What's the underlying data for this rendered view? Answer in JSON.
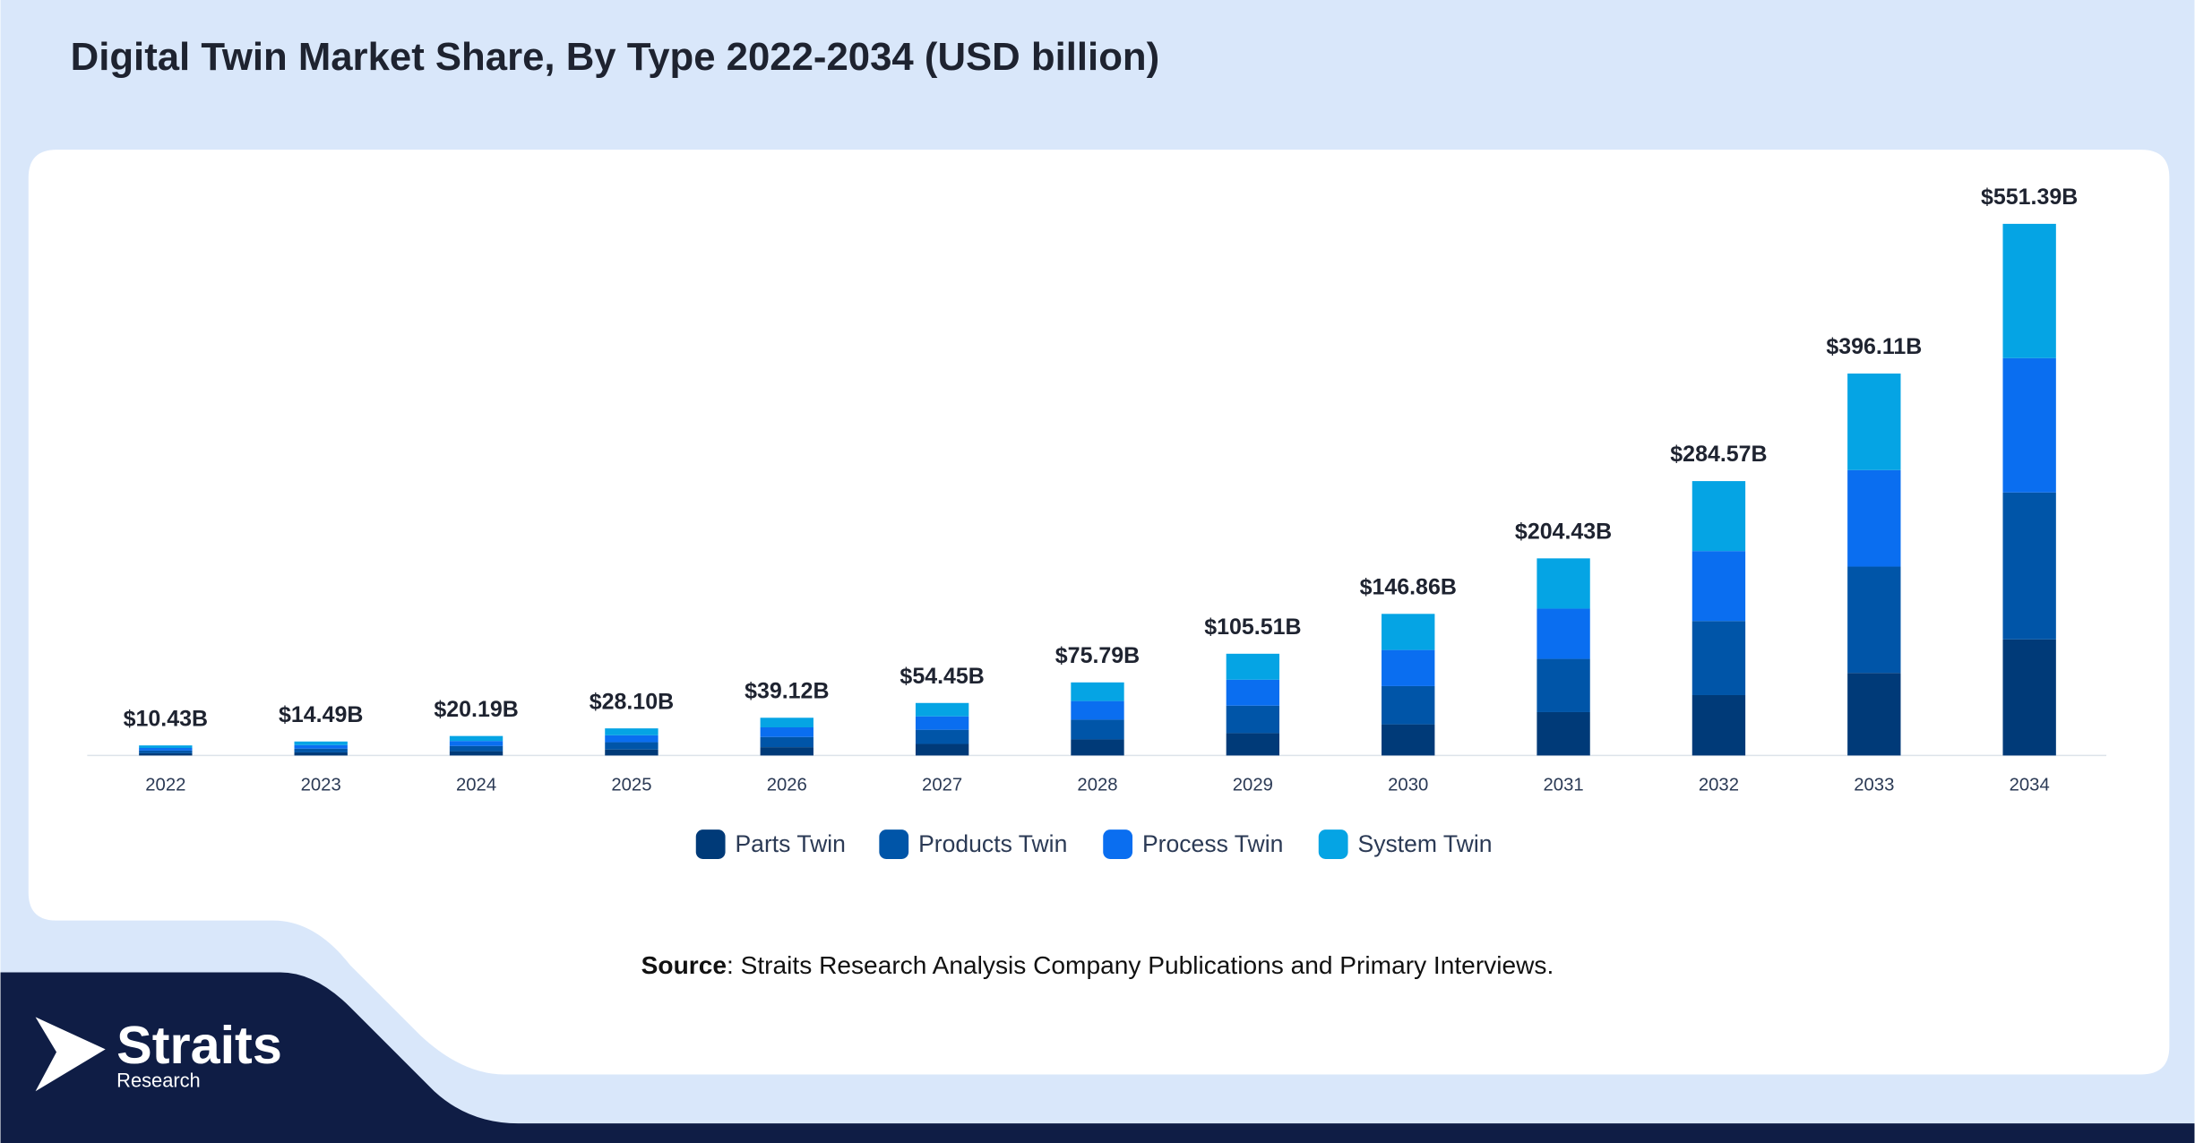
{
  "chart_data": {
    "type": "stacked-bar",
    "title": "Digital Twin Market Share, By Type 2022-2034 (USD billion)",
    "categories": [
      "2022",
      "2023",
      "2024",
      "2025",
      "2026",
      "2027",
      "2028",
      "2029",
      "2030",
      "2031",
      "2032",
      "2033",
      "2034"
    ],
    "series": [
      {
        "name": "Parts Twin",
        "color": "#003a78",
        "values": [
          2.29,
          3.19,
          4.44,
          6.18,
          8.61,
          11.98,
          16.67,
          23.21,
          32.31,
          44.97,
          62.61,
          85.6,
          120.4
        ]
      },
      {
        "name": "Products Twin",
        "color": "#0055a8",
        "values": [
          2.82,
          3.91,
          5.45,
          7.59,
          10.56,
          14.7,
          20.46,
          28.49,
          39.65,
          55.2,
          76.83,
          110.3,
          152.4
        ]
      },
      {
        "name": "Process Twin",
        "color": "#0a6ef0",
        "values": [
          2.66,
          3.7,
          5.15,
          7.17,
          9.98,
          13.89,
          19.33,
          26.91,
          37.45,
          52.13,
          72.57,
          100.1,
          139.3
        ]
      },
      {
        "name": "System Twin",
        "color": "#05a4e4",
        "values": [
          2.66,
          3.69,
          5.15,
          7.16,
          9.97,
          13.88,
          19.33,
          26.9,
          37.45,
          52.13,
          72.56,
          100.11,
          139.29
        ]
      }
    ],
    "totals": {
      "values": [
        10.43,
        14.49,
        20.19,
        28.1,
        39.12,
        54.45,
        75.79,
        105.51,
        146.86,
        204.43,
        284.57,
        396.11,
        551.39
      ],
      "value_labels": [
        "$10.43B",
        "$14.49B",
        "$20.19B",
        "$28.10B",
        "$39.12B",
        "$54.45B",
        "$75.79B",
        "$105.51B",
        "$146.86B",
        "$204.43B",
        "$284.57B",
        "$396.11B",
        "$551.39B"
      ]
    },
    "ylim": [
      0,
      600
    ],
    "legend": "bottom"
  },
  "source_label": "Source",
  "source_text": ": Straits Research Analysis Company Publications and Primary Interviews.",
  "logo": {
    "name": "Straits",
    "subtitle": "Research"
  }
}
